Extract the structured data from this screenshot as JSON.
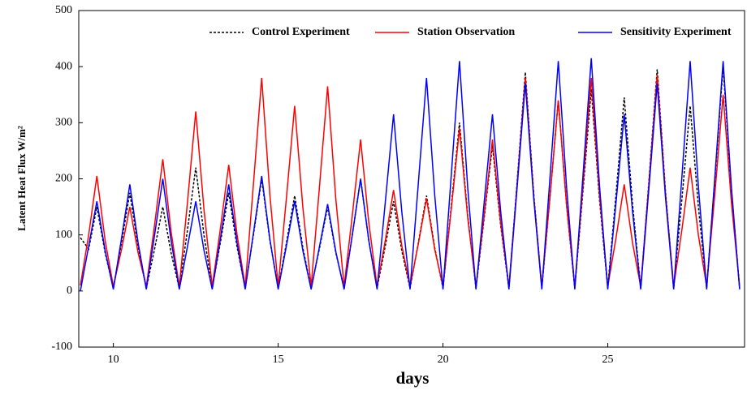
{
  "chart_data": {
    "type": "line",
    "x_label": "days",
    "y_label": "Latent Heat Flux  W/m²",
    "xlim": [
      8.95,
      29.15
    ],
    "xticks": [
      10,
      15,
      20,
      25
    ],
    "ylim": [
      -100,
      500
    ],
    "yticks": [
      -100,
      0,
      100,
      200,
      300,
      400,
      500
    ],
    "legend": "top",
    "x": [
      9,
      9.25,
      9.5,
      9.75,
      10,
      10.25,
      10.5,
      10.75,
      11,
      11.25,
      11.5,
      11.75,
      12,
      12.25,
      12.5,
      12.75,
      13,
      13.25,
      13.5,
      13.75,
      14,
      14.25,
      14.5,
      14.75,
      15,
      15.25,
      15.5,
      15.75,
      16,
      16.25,
      16.5,
      16.75,
      17,
      17.25,
      17.5,
      17.75,
      18,
      18.25,
      18.5,
      18.75,
      19,
      19.25,
      19.5,
      19.75,
      20,
      20.25,
      20.5,
      20.75,
      21,
      21.25,
      21.5,
      21.75,
      22,
      22.25,
      22.5,
      22.75,
      23,
      23.25,
      23.5,
      23.75,
      24,
      24.25,
      24.5,
      24.75,
      25,
      25.25,
      25.5,
      25.75,
      26,
      26.25,
      26.5,
      26.75,
      27,
      27.25,
      27.5,
      27.75,
      28,
      28.25,
      28.5,
      28.75,
      29
    ],
    "series": [
      {
        "name": "Control Experiment",
        "color": "#000000",
        "style": "dashed",
        "values": [
          95,
          75,
          150,
          68,
          5,
          88,
          175,
          79,
          5,
          75,
          150,
          68,
          5,
          110,
          220,
          99,
          5,
          88,
          175,
          79,
          5,
          100,
          200,
          90,
          5,
          85,
          170,
          77,
          5,
          75,
          150,
          68,
          5,
          100,
          200,
          90,
          5,
          80,
          160,
          72,
          5,
          85,
          170,
          77,
          5,
          150,
          300,
          135,
          5,
          130,
          260,
          117,
          5,
          195,
          390,
          176,
          5,
          170,
          340,
          153,
          5,
          180,
          360,
          162,
          5,
          173,
          345,
          155,
          5,
          198,
          395,
          178,
          5,
          165,
          330,
          149,
          5,
          200,
          400,
          180,
          5
        ]
      },
      {
        "name": "Station Observation",
        "color": "#ff0000",
        "style": "solid",
        "values": [
          10,
          100,
          205,
          90,
          8,
          75,
          150,
          68,
          8,
          118,
          235,
          106,
          8,
          160,
          320,
          144,
          8,
          113,
          225,
          101,
          8,
          190,
          380,
          171,
          8,
          165,
          330,
          149,
          8,
          183,
          365,
          164,
          8,
          135,
          270,
          122,
          8,
          90,
          180,
          81,
          8,
          83,
          165,
          74,
          8,
          145,
          290,
          131,
          8,
          135,
          270,
          122,
          8,
          190,
          380,
          171,
          8,
          170,
          340,
          153,
          8,
          190,
          380,
          171,
          8,
          95,
          190,
          86,
          8,
          193,
          385,
          173,
          8,
          110,
          220,
          99,
          8,
          175,
          350,
          158,
          8
        ]
      },
      {
        "name": "Sensitivity Experiment",
        "color": "#0000ff",
        "style": "solid",
        "values": [
          0,
          80,
          160,
          72,
          3,
          95,
          190,
          86,
          3,
          100,
          200,
          90,
          3,
          80,
          160,
          72,
          3,
          95,
          190,
          86,
          3,
          103,
          205,
          92,
          3,
          80,
          160,
          72,
          3,
          78,
          155,
          70,
          3,
          100,
          200,
          90,
          3,
          158,
          315,
          142,
          3,
          190,
          380,
          171,
          3,
          205,
          410,
          185,
          3,
          158,
          315,
          142,
          3,
          185,
          370,
          167,
          3,
          205,
          410,
          185,
          3,
          208,
          415,
          187,
          3,
          158,
          315,
          142,
          3,
          185,
          370,
          167,
          3,
          205,
          410,
          185,
          3,
          205,
          410,
          185,
          3
        ]
      }
    ]
  }
}
